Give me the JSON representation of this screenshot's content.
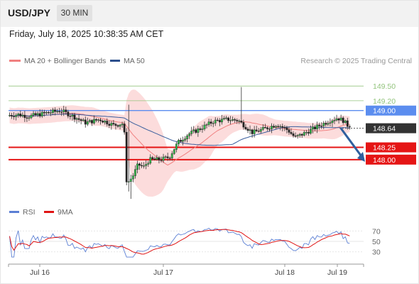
{
  "header": {
    "symbol": "USD/JPY",
    "timeframe": "30 MIN"
  },
  "datetime": "Friday, July 18, 2025 10:38:35 AM CET",
  "legend": {
    "ma20_label": "MA 20 + Bollinger Bands",
    "ma50_label": "MA 50",
    "credit": "Research © 2025 Trading Central",
    "colors": {
      "ma20": "#f08080",
      "ma50": "#3a5f9e"
    }
  },
  "rsi_legend": {
    "rsi_label": "RSI",
    "ma_label": "9MA",
    "colors": {
      "rsi": "#5b7fd4",
      "ma": "#e01515"
    }
  },
  "chart_data": {
    "type": "candlestick",
    "ylim": [
      147.1,
      149.85
    ],
    "x_ticks": [
      "Jul 16",
      "Jul 17",
      "Jul 18",
      "Jul 19"
    ],
    "levels": [
      {
        "value": 149.5,
        "label": "149.50",
        "kind": "target",
        "color": "#93c47d"
      },
      {
        "value": 149.2,
        "label": "149.20",
        "kind": "target",
        "color": "#93c47d"
      },
      {
        "value": 149.0,
        "label": "149.00",
        "kind": "resistance",
        "color": "#5b8def"
      },
      {
        "value": 148.64,
        "label": "148.64",
        "kind": "current",
        "color": "#333333"
      },
      {
        "value": 148.25,
        "label": "148.25",
        "kind": "support",
        "color": "#e51515"
      },
      {
        "value": 148.0,
        "label": "148.00",
        "kind": "support",
        "color": "#e51515"
      }
    ],
    "arrow": {
      "from": 148.64,
      "to": 148.0,
      "direction": "down",
      "color": "#2f5f9e"
    },
    "rsi": {
      "levels": [
        70,
        50,
        30
      ],
      "ylim": [
        12,
        88
      ]
    }
  }
}
